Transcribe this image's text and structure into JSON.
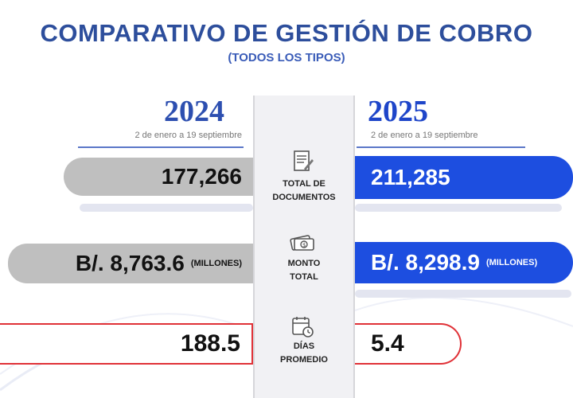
{
  "title": "COMPARATIVO DE GESTIÓN DE COBRO",
  "subtitle": "(TODOS LOS TIPOS)",
  "years": [
    {
      "year": "2024",
      "period": "2 de enero a 19 septiembre"
    },
    {
      "year": "2025",
      "period": "2 de enero a 19 septiembre"
    }
  ],
  "metrics": [
    {
      "label_line1": "TOTAL DE",
      "label_line2": "DOCUMENTOS",
      "icon": "documents-icon",
      "value_2024": "177,266",
      "value_2025": "211,285"
    },
    {
      "label_line1": "MONTO",
      "label_line2": "TOTAL",
      "icon": "money-icon",
      "value_2024": "B/. 8,763.6",
      "unit_2024": "(MILLONES)",
      "value_2025": "B/. 8,298.9",
      "unit_2025": "(MILLONES)"
    },
    {
      "label_line1": "DÍAS",
      "label_line2": "PROMEDIO",
      "icon": "calendar-clock-icon",
      "value_2024": "188.5",
      "value_2025": "5.4"
    }
  ],
  "colors": {
    "title": "#2d4e9c",
    "year_2025": "#1e45c9",
    "pill_2024": "#bfbfbf",
    "pill_2025": "#1d4ee0",
    "days_border": "#e03137"
  }
}
